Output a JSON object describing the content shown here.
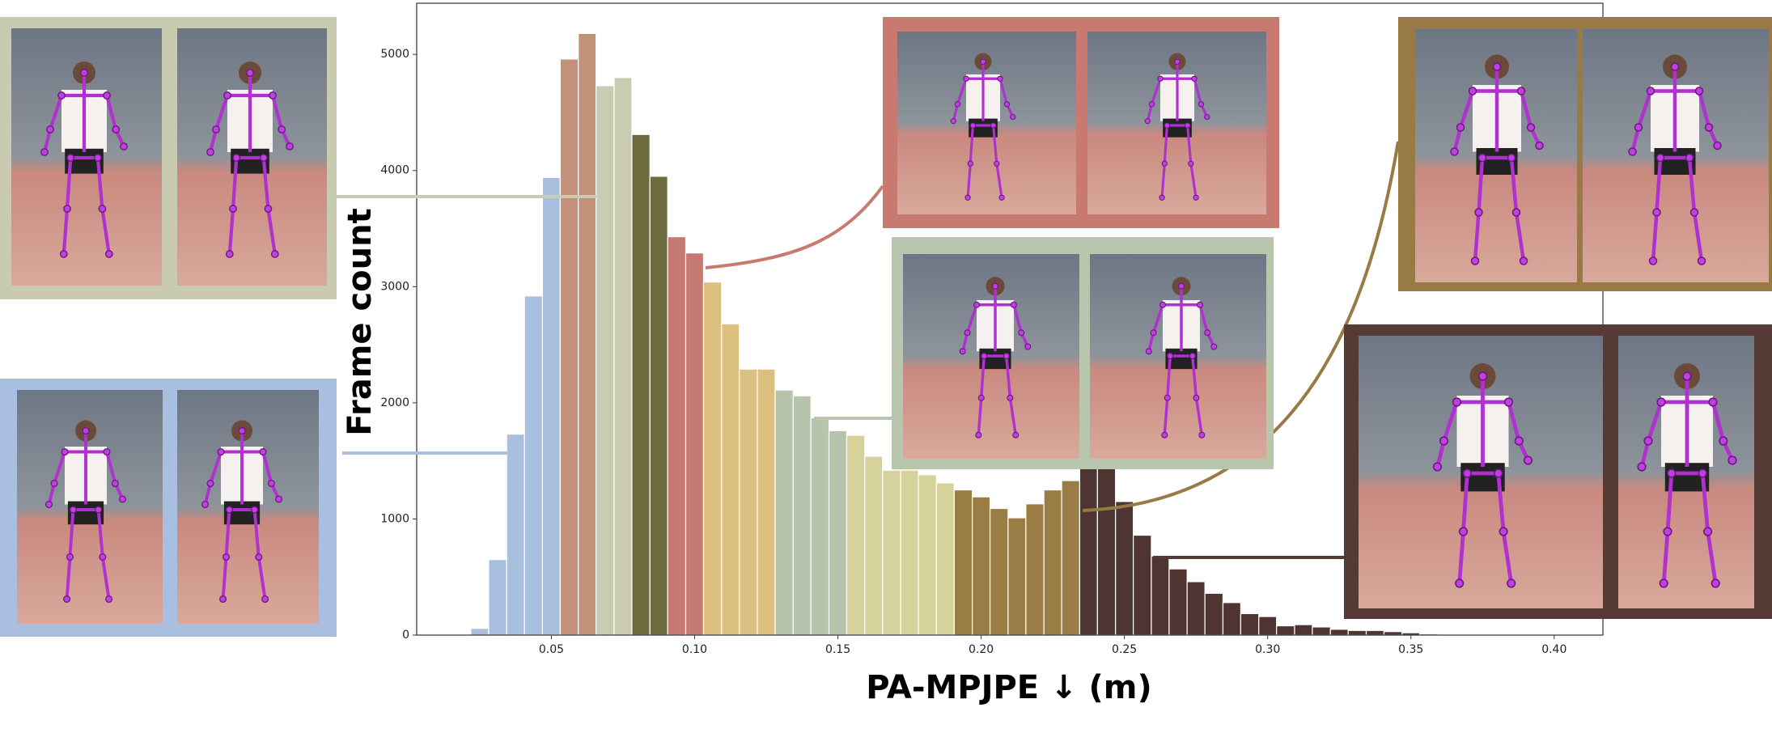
{
  "chart_data": {
    "type": "histogram",
    "xlabel": "PA-MPJPE ↓ (m)",
    "ylabel": "Frame count",
    "bins": [
      0.0219,
      0.0281,
      0.0344,
      0.0406,
      0.0469,
      0.0531,
      0.0594,
      0.0656,
      0.0719,
      0.0781,
      0.0844,
      0.0906,
      0.0969,
      0.1031,
      0.1094,
      0.1156,
      0.1219,
      0.1281,
      0.1344,
      0.1406,
      0.1469,
      0.1531,
      0.1594,
      0.1656,
      0.1719,
      0.1781,
      0.1844,
      0.1906,
      0.1969,
      0.2031,
      0.2094,
      0.2156,
      0.2219,
      0.2281,
      0.2344,
      0.2406,
      0.2469,
      0.2531,
      0.2594,
      0.2656,
      0.2719,
      0.2781,
      0.2844,
      0.2906,
      0.2969,
      0.3031,
      0.3094,
      0.3156,
      0.3219,
      0.3281,
      0.3344,
      0.3406,
      0.3469,
      0.3531,
      0.3594
    ],
    "values": [
      58,
      650,
      1730,
      2920,
      3940,
      4960,
      5180,
      4730,
      4800,
      4310,
      3950,
      3430,
      3290,
      3040,
      2680,
      2290,
      2290,
      2110,
      2060,
      1870,
      1760,
      1720,
      1540,
      1420,
      1420,
      1380,
      1310,
      1250,
      1190,
      1090,
      1010,
      1130,
      1250,
      1330,
      1450,
      1480,
      1150,
      860,
      680,
      570,
      460,
      360,
      280,
      185,
      160,
      80,
      90,
      70,
      50,
      40,
      40,
      30,
      20,
      10
    ],
    "colors": [
      "#a8bfe0",
      "#a8bfe0",
      "#a8bfe0",
      "#a8bfe0",
      "#a8bfe0",
      "#c4917a",
      "#c4917a",
      "#c9ccb0",
      "#c9ccb0",
      "#6b6b3e",
      "#6b6b3e",
      "#c47a72",
      "#c47a72",
      "#dcc07f",
      "#dcc07f",
      "#dcc07f",
      "#dcc07f",
      "#b7c4ac",
      "#b7c4ac",
      "#b7c4ac",
      "#b7c4ac",
      "#d6d29b",
      "#d6d29b",
      "#d6d29b",
      "#d6d29b",
      "#d6d29b",
      "#d6d29b",
      "#9a7d45",
      "#9a7d45",
      "#9a7d45",
      "#9a7d45",
      "#9a7d45",
      "#9a7d45",
      "#9a7d45",
      "#4e3532",
      "#4e3532",
      "#4e3532",
      "#4e3532",
      "#4e3532",
      "#4e3532",
      "#4e3532",
      "#4e3532",
      "#4e3532",
      "#4e3532",
      "#4e3532",
      "#4e3532",
      "#4e3532",
      "#4e3532",
      "#4e3532",
      "#4e3532",
      "#4e3532",
      "#4e3532",
      "#4e3532",
      "#4e3532"
    ],
    "xlim": [
      0.003,
      0.417
    ],
    "ylim": [
      0,
      5440
    ],
    "xticks": [
      0.05,
      {
        "value": 0.1,
        "label": "0.10"
      },
      0.15,
      {
        "value": 0.2,
        "label": "0.20"
      },
      0.25,
      {
        "value": 0.3,
        "label": "0.30"
      },
      0.35,
      {
        "value": 0.4,
        "label": "0.40"
      }
    ],
    "yticks": [
      0,
      1000,
      2000,
      3000,
      4000,
      5000
    ]
  }
}
